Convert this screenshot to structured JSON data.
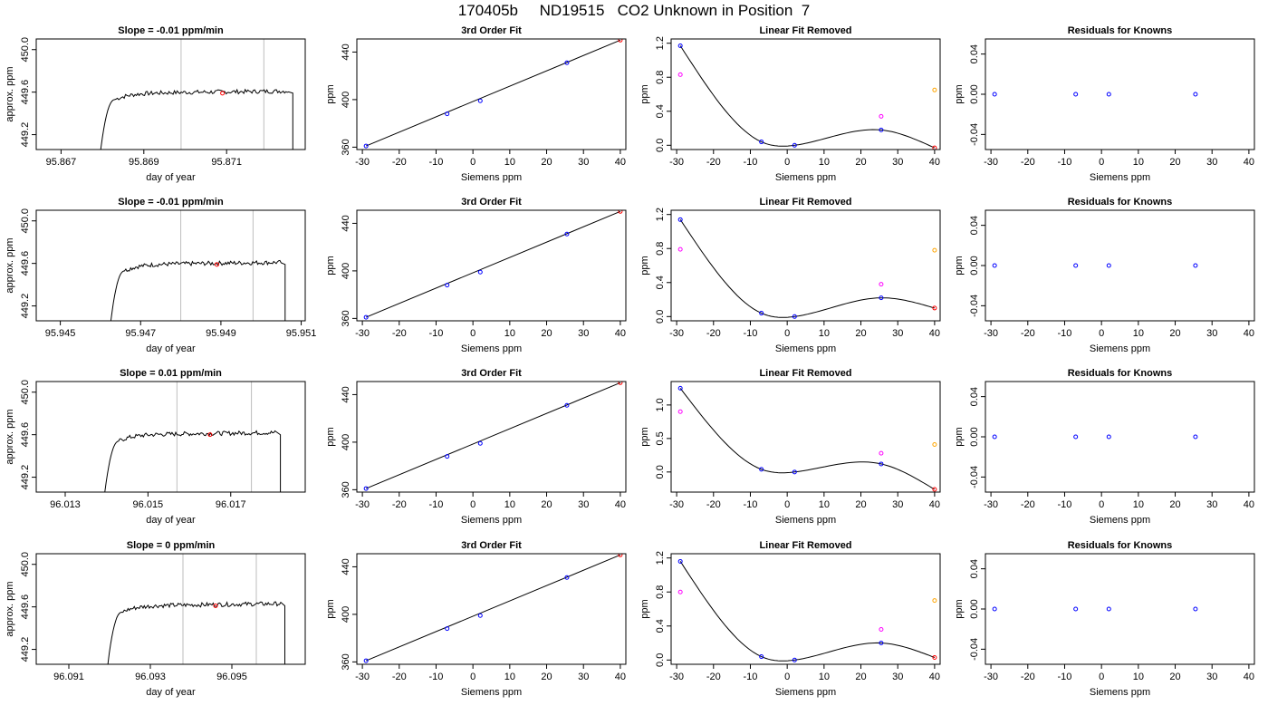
{
  "title": "170405b     ND19515   CO2 Unknown in Position  7",
  "chart_data": [
    {
      "type": "line",
      "panel": "trace",
      "title": "Slope =  -0.01  ppm/min",
      "xlabel": "day of year",
      "ylabel": "approx. ppm",
      "xlim": [
        95.8664,
        95.8729
      ],
      "ylim": [
        449.06,
        450.1
      ],
      "xticks": [
        "95.867",
        "95.869",
        "95.871"
      ],
      "yticks": [
        "449.2",
        "449.6",
        "450.0"
      ],
      "vlines": [
        95.8699,
        95.8719
      ],
      "trace": {
        "x_start": 95.8679,
        "x_end": 95.8726,
        "rise_end": 95.8683,
        "level": 449.59,
        "plateau_end": 95.8725
      },
      "highlight": {
        "x": 95.8709,
        "y": 449.59
      }
    },
    {
      "type": "scatter",
      "panel": "fit",
      "title": "3rd Order Fit",
      "xlabel": "Siemens ppm",
      "ylabel": "ppm",
      "xlim": [
        -31.5,
        41.5
      ],
      "ylim": [
        358,
        451
      ],
      "xticks": [
        "-30",
        "-20",
        "-10",
        "0",
        "10",
        "20",
        "30",
        "40"
      ],
      "yticks": [
        "360",
        "400",
        "440"
      ],
      "points": [
        {
          "x": -29,
          "y": 361,
          "c": "blue"
        },
        {
          "x": -7,
          "y": 388,
          "c": "blue"
        },
        {
          "x": 2,
          "y": 399,
          "c": "blue"
        },
        {
          "x": 25.5,
          "y": 431,
          "c": "blue"
        },
        {
          "x": 40,
          "y": 450,
          "c": "red"
        }
      ],
      "line": [
        [
          -29,
          361
        ],
        [
          40,
          450
        ]
      ]
    },
    {
      "type": "scatter",
      "panel": "linear",
      "title": "Linear Fit Removed",
      "xlabel": "Siemens ppm",
      "ylabel": "ppm",
      "xlim": [
        -31.5,
        41.5
      ],
      "ylim": [
        -0.05,
        1.25
      ],
      "xticks": [
        "-30",
        "-20",
        "-10",
        "0",
        "10",
        "20",
        "30",
        "40"
      ],
      "yticks": [
        "0.0",
        "0.4",
        "0.8",
        "1.2"
      ],
      "points": [
        {
          "x": -29,
          "y": 1.17,
          "c": "blue"
        },
        {
          "x": -7,
          "y": 0.04,
          "c": "blue"
        },
        {
          "x": 2,
          "y": 0.0,
          "c": "blue"
        },
        {
          "x": 25.5,
          "y": 0.18,
          "c": "blue"
        },
        {
          "x": -29,
          "y": 0.83,
          "c": "magenta"
        },
        {
          "x": 25.5,
          "y": 0.34,
          "c": "magenta"
        },
        {
          "x": 40,
          "y": 0.65,
          "c": "orange"
        },
        {
          "x": 40,
          "y": -0.03,
          "c": "red"
        }
      ],
      "curve": [
        [
          -29,
          1.17
        ],
        [
          -7,
          0.04
        ],
        [
          2,
          0.0
        ],
        [
          25.5,
          0.18
        ],
        [
          40,
          -0.03
        ]
      ]
    },
    {
      "type": "scatter",
      "panel": "resid",
      "title": "Residuals for Knowns",
      "xlabel": "Siemens ppm",
      "ylabel": "ppm",
      "xlim": [
        -31.5,
        41.5
      ],
      "ylim": [
        -0.055,
        0.055
      ],
      "xticks": [
        "-30",
        "-20",
        "-10",
        "0",
        "10",
        "20",
        "30",
        "40"
      ],
      "yticks": [
        "-0.04",
        "0.00",
        "0.04"
      ],
      "points": [
        {
          "x": -29,
          "y": 0,
          "c": "blue"
        },
        {
          "x": -7,
          "y": 0,
          "c": "blue"
        },
        {
          "x": 2,
          "y": 0,
          "c": "blue"
        },
        {
          "x": 25.5,
          "y": 0,
          "c": "blue"
        }
      ]
    },
    {
      "type": "line",
      "panel": "trace",
      "title": "Slope =  -0.01  ppm/min",
      "xlabel": "day of year",
      "ylabel": "approx. ppm",
      "xlim": [
        95.9444,
        95.9511
      ],
      "ylim": [
        449.06,
        450.1
      ],
      "xticks": [
        "95.945",
        "95.947",
        "95.949",
        "95.951"
      ],
      "yticks": [
        "449.2",
        "449.6",
        "450.0"
      ],
      "vlines": [
        95.948,
        95.9498
      ],
      "trace": {
        "x_start": 95.9462,
        "x_end": 95.9506,
        "rise_end": 95.9466,
        "level": 449.59,
        "plateau_end": 95.9505
      },
      "highlight": {
        "x": 95.9489,
        "y": 449.59
      }
    },
    {
      "type": "scatter",
      "panel": "fit",
      "title": "3rd Order Fit",
      "xlabel": "Siemens ppm",
      "ylabel": "ppm",
      "xlim": [
        -31.5,
        41.5
      ],
      "ylim": [
        358,
        451
      ],
      "xticks": [
        "-30",
        "-20",
        "-10",
        "0",
        "10",
        "20",
        "30",
        "40"
      ],
      "yticks": [
        "360",
        "400",
        "440"
      ],
      "points": [
        {
          "x": -29,
          "y": 361,
          "c": "blue"
        },
        {
          "x": -7,
          "y": 388,
          "c": "blue"
        },
        {
          "x": 2,
          "y": 399,
          "c": "blue"
        },
        {
          "x": 25.5,
          "y": 431,
          "c": "blue"
        },
        {
          "x": 40,
          "y": 450,
          "c": "red"
        }
      ],
      "line": [
        [
          -29,
          361
        ],
        [
          40,
          450
        ]
      ]
    },
    {
      "type": "scatter",
      "panel": "linear",
      "title": "Linear Fit Removed",
      "xlabel": "Siemens ppm",
      "ylabel": "ppm",
      "xlim": [
        -31.5,
        41.5
      ],
      "ylim": [
        -0.05,
        1.25
      ],
      "xticks": [
        "-30",
        "-20",
        "-10",
        "0",
        "10",
        "20",
        "30",
        "40"
      ],
      "yticks": [
        "0.0",
        "0.4",
        "0.8",
        "1.2"
      ],
      "points": [
        {
          "x": -29,
          "y": 1.14,
          "c": "blue"
        },
        {
          "x": -7,
          "y": 0.04,
          "c": "blue"
        },
        {
          "x": 2,
          "y": 0.0,
          "c": "blue"
        },
        {
          "x": 25.5,
          "y": 0.22,
          "c": "blue"
        },
        {
          "x": -29,
          "y": 0.79,
          "c": "magenta"
        },
        {
          "x": 25.5,
          "y": 0.38,
          "c": "magenta"
        },
        {
          "x": 40,
          "y": 0.78,
          "c": "orange"
        },
        {
          "x": 40,
          "y": 0.1,
          "c": "red"
        }
      ],
      "curve": [
        [
          -29,
          1.14
        ],
        [
          -7,
          0.04
        ],
        [
          2,
          0.0
        ],
        [
          25.5,
          0.22
        ],
        [
          40,
          0.1
        ]
      ]
    },
    {
      "type": "scatter",
      "panel": "resid",
      "title": "Residuals for Knowns",
      "xlabel": "Siemens ppm",
      "ylabel": "ppm",
      "xlim": [
        -31.5,
        41.5
      ],
      "ylim": [
        -0.055,
        0.055
      ],
      "xticks": [
        "-30",
        "-20",
        "-10",
        "0",
        "10",
        "20",
        "30",
        "40"
      ],
      "yticks": [
        "-0.04",
        "0.00",
        "0.04"
      ],
      "points": [
        {
          "x": -29,
          "y": 0,
          "c": "blue"
        },
        {
          "x": -7,
          "y": 0,
          "c": "blue"
        },
        {
          "x": 2,
          "y": 0,
          "c": "blue"
        },
        {
          "x": 25.5,
          "y": 0,
          "c": "blue"
        }
      ]
    },
    {
      "type": "line",
      "panel": "trace",
      "title": "Slope =  0.01  ppm/min",
      "xlabel": "day of year",
      "ylabel": "approx. ppm",
      "xlim": [
        96.0123,
        96.0188
      ],
      "ylim": [
        449.06,
        450.1
      ],
      "xticks": [
        "96.013",
        "96.015",
        "96.017"
      ],
      "yticks": [
        "449.2",
        "449.6",
        "450.0"
      ],
      "vlines": [
        96.0157,
        96.0175
      ],
      "trace": {
        "x_start": 96.0139,
        "x_end": 96.0182,
        "rise_end": 96.0143,
        "level": 449.6,
        "plateau_end": 96.0181
      },
      "highlight": {
        "x": 96.0165,
        "y": 449.6
      }
    },
    {
      "type": "scatter",
      "panel": "fit",
      "title": "3rd Order Fit",
      "xlabel": "Siemens ppm",
      "ylabel": "ppm",
      "xlim": [
        -31.5,
        41.5
      ],
      "ylim": [
        358,
        451
      ],
      "xticks": [
        "-30",
        "-20",
        "-10",
        "0",
        "10",
        "20",
        "30",
        "40"
      ],
      "yticks": [
        "360",
        "400",
        "440"
      ],
      "points": [
        {
          "x": -29,
          "y": 361,
          "c": "blue"
        },
        {
          "x": -7,
          "y": 388,
          "c": "blue"
        },
        {
          "x": 2,
          "y": 399,
          "c": "blue"
        },
        {
          "x": 25.5,
          "y": 431,
          "c": "blue"
        },
        {
          "x": 40,
          "y": 450,
          "c": "red"
        }
      ],
      "line": [
        [
          -29,
          361
        ],
        [
          40,
          450
        ]
      ]
    },
    {
      "type": "scatter",
      "panel": "linear",
      "title": "Linear Fit Removed",
      "xlabel": "Siemens ppm",
      "ylabel": "ppm",
      "xlim": [
        -31.5,
        41.5
      ],
      "ylim": [
        -0.3,
        1.35
      ],
      "xticks": [
        "-30",
        "-20",
        "-10",
        "0",
        "10",
        "20",
        "30",
        "40"
      ],
      "yticks": [
        "0.0",
        "0.5",
        "1.0"
      ],
      "points": [
        {
          "x": -29,
          "y": 1.25,
          "c": "blue"
        },
        {
          "x": -7,
          "y": 0.04,
          "c": "blue"
        },
        {
          "x": 2,
          "y": 0.0,
          "c": "blue"
        },
        {
          "x": 25.5,
          "y": 0.12,
          "c": "blue"
        },
        {
          "x": -29,
          "y": 0.9,
          "c": "magenta"
        },
        {
          "x": 25.5,
          "y": 0.28,
          "c": "magenta"
        },
        {
          "x": 40,
          "y": 0.41,
          "c": "orange"
        },
        {
          "x": 40,
          "y": -0.26,
          "c": "red"
        }
      ],
      "curve": [
        [
          -29,
          1.25
        ],
        [
          -7,
          0.04
        ],
        [
          2,
          0.0
        ],
        [
          25.5,
          0.12
        ],
        [
          40,
          -0.26
        ]
      ]
    },
    {
      "type": "scatter",
      "panel": "resid",
      "title": "Residuals for Knowns",
      "xlabel": "Siemens ppm",
      "ylabel": "ppm",
      "xlim": [
        -31.5,
        41.5
      ],
      "ylim": [
        -0.055,
        0.055
      ],
      "xticks": [
        "-30",
        "-20",
        "-10",
        "0",
        "10",
        "20",
        "30",
        "40"
      ],
      "yticks": [
        "-0.04",
        "0.00",
        "0.04"
      ],
      "points": [
        {
          "x": -29,
          "y": 0,
          "c": "blue"
        },
        {
          "x": -7,
          "y": 0,
          "c": "blue"
        },
        {
          "x": 2,
          "y": 0,
          "c": "blue"
        },
        {
          "x": 25.5,
          "y": 0,
          "c": "blue"
        }
      ]
    },
    {
      "type": "line",
      "panel": "trace",
      "title": "Slope =  0  ppm/min",
      "xlabel": "day of year",
      "ylabel": "approx. ppm",
      "xlim": [
        96.0902,
        96.0968
      ],
      "ylim": [
        449.06,
        450.1
      ],
      "xticks": [
        "96.091",
        "96.093",
        "96.095"
      ],
      "yticks": [
        "449.2",
        "449.6",
        "450.0"
      ],
      "vlines": [
        96.0938,
        96.0956
      ],
      "trace": {
        "x_start": 96.0919,
        "x_end": 96.0963,
        "rise_end": 96.0923,
        "level": 449.61,
        "plateau_end": 96.0962
      },
      "highlight": {
        "x": 96.0946,
        "y": 449.61
      }
    },
    {
      "type": "scatter",
      "panel": "fit",
      "title": "3rd Order Fit",
      "xlabel": "Siemens ppm",
      "ylabel": "ppm",
      "xlim": [
        -31.5,
        41.5
      ],
      "ylim": [
        358,
        451
      ],
      "xticks": [
        "-30",
        "-20",
        "-10",
        "0",
        "10",
        "20",
        "30",
        "40"
      ],
      "yticks": [
        "360",
        "400",
        "440"
      ],
      "points": [
        {
          "x": -29,
          "y": 361,
          "c": "blue"
        },
        {
          "x": -7,
          "y": 388,
          "c": "blue"
        },
        {
          "x": 2,
          "y": 399,
          "c": "blue"
        },
        {
          "x": 25.5,
          "y": 431,
          "c": "blue"
        },
        {
          "x": 40,
          "y": 450,
          "c": "red"
        }
      ],
      "line": [
        [
          -29,
          361
        ],
        [
          40,
          450
        ]
      ]
    },
    {
      "type": "scatter",
      "panel": "linear",
      "title": "Linear Fit Removed",
      "xlabel": "Siemens ppm",
      "ylabel": "ppm",
      "xlim": [
        -31.5,
        41.5
      ],
      "ylim": [
        -0.05,
        1.25
      ],
      "xticks": [
        "-30",
        "-20",
        "-10",
        "0",
        "10",
        "20",
        "30",
        "40"
      ],
      "yticks": [
        "0.0",
        "0.4",
        "0.8",
        "1.2"
      ],
      "points": [
        {
          "x": -29,
          "y": 1.16,
          "c": "blue"
        },
        {
          "x": -7,
          "y": 0.04,
          "c": "blue"
        },
        {
          "x": 2,
          "y": 0.0,
          "c": "blue"
        },
        {
          "x": 25.5,
          "y": 0.2,
          "c": "blue"
        },
        {
          "x": -29,
          "y": 0.8,
          "c": "magenta"
        },
        {
          "x": 25.5,
          "y": 0.36,
          "c": "magenta"
        },
        {
          "x": 40,
          "y": 0.7,
          "c": "orange"
        },
        {
          "x": 40,
          "y": 0.03,
          "c": "red"
        }
      ],
      "curve": [
        [
          -29,
          1.16
        ],
        [
          -7,
          0.04
        ],
        [
          2,
          0.0
        ],
        [
          25.5,
          0.2
        ],
        [
          40,
          0.03
        ]
      ]
    },
    {
      "type": "scatter",
      "panel": "resid",
      "title": "Residuals for Knowns",
      "xlabel": "Siemens ppm",
      "ylabel": "ppm",
      "xlim": [
        -31.5,
        41.5
      ],
      "ylim": [
        -0.055,
        0.055
      ],
      "xticks": [
        "-30",
        "-20",
        "-10",
        "0",
        "10",
        "20",
        "30",
        "40"
      ],
      "yticks": [
        "-0.04",
        "0.00",
        "0.04"
      ],
      "points": [
        {
          "x": -29,
          "y": 0,
          "c": "blue"
        },
        {
          "x": -7,
          "y": 0,
          "c": "blue"
        },
        {
          "x": 2,
          "y": 0,
          "c": "blue"
        },
        {
          "x": 25.5,
          "y": 0,
          "c": "blue"
        }
      ]
    }
  ],
  "colors": {
    "blue": "#0000ff",
    "red": "#ff0000",
    "magenta": "#ff00ff",
    "orange": "#ffa500",
    "vline": "#bebebe",
    "axis": "#000000"
  }
}
